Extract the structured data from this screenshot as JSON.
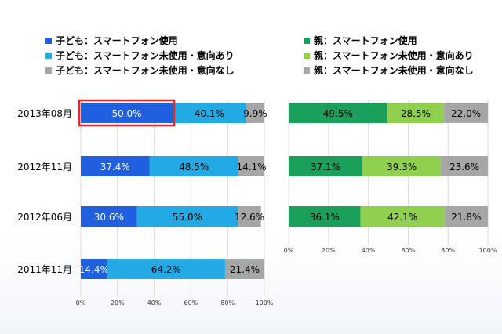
{
  "colors": {
    "child_use": "#1f5fe0",
    "child_intent": "#21aae4",
    "child_no_intent": "#a6a6a6",
    "parent_use": "#1aa05a",
    "parent_intent": "#8fd14f",
    "parent_no_intent": "#a6a6a6",
    "highlight": "#e8262b"
  },
  "chart_data": [
    {
      "type": "bar",
      "orientation": "horizontal",
      "stacked": true,
      "categories": [
        "2013年08月",
        "2012年11月",
        "2012年06月",
        "2011年11月"
      ],
      "series": [
        {
          "name": "子ども：スマートフォン使用",
          "values": [
            50.0,
            37.4,
            30.6,
            14.4
          ],
          "labels": [
            "50.0%",
            "37.4%",
            "30.6%",
            "14.4%"
          ]
        },
        {
          "name": "子ども：スマートフォン未使用・意向あり",
          "values": [
            40.1,
            48.5,
            55.0,
            64.2
          ],
          "labels": [
            "40.1%",
            "48.5%",
            "55.0%",
            "64.2%"
          ]
        },
        {
          "name": "子ども：スマートフォン未使用・意向なし",
          "values": [
            9.9,
            14.1,
            12.6,
            21.4
          ],
          "labels": [
            "9.9%",
            "14.1%",
            "12.6%",
            "21.4%"
          ]
        }
      ],
      "xlim": [
        0,
        100
      ],
      "xticks": [
        "0%",
        "20%",
        "40%",
        "60%",
        "80%",
        "100%"
      ],
      "highlight": {
        "category": "2013年08月",
        "series": "子ども：スマートフォン使用"
      }
    },
    {
      "type": "bar",
      "orientation": "horizontal",
      "stacked": true,
      "categories": [
        "2013年08月",
        "2012年11月",
        "2012年06月"
      ],
      "series": [
        {
          "name": "親：スマートフォン使用",
          "values": [
            49.5,
            37.1,
            36.1
          ],
          "labels": [
            "49.5%",
            "37.1%",
            "36.1%"
          ]
        },
        {
          "name": "親：スマートフォン未使用・意向あり",
          "values": [
            28.5,
            39.3,
            42.1
          ],
          "labels": [
            "28.5%",
            "39.3%",
            "42.1%"
          ]
        },
        {
          "name": "親：スマートフォン未使用・意向なし",
          "values": [
            22.0,
            23.6,
            21.8
          ],
          "labels": [
            "22.0%",
            "23.6%",
            "21.8%"
          ]
        }
      ],
      "xlim": [
        0,
        100
      ],
      "xticks": [
        "0%",
        "20%",
        "40%",
        "60%",
        "80%",
        "100%"
      ]
    }
  ]
}
